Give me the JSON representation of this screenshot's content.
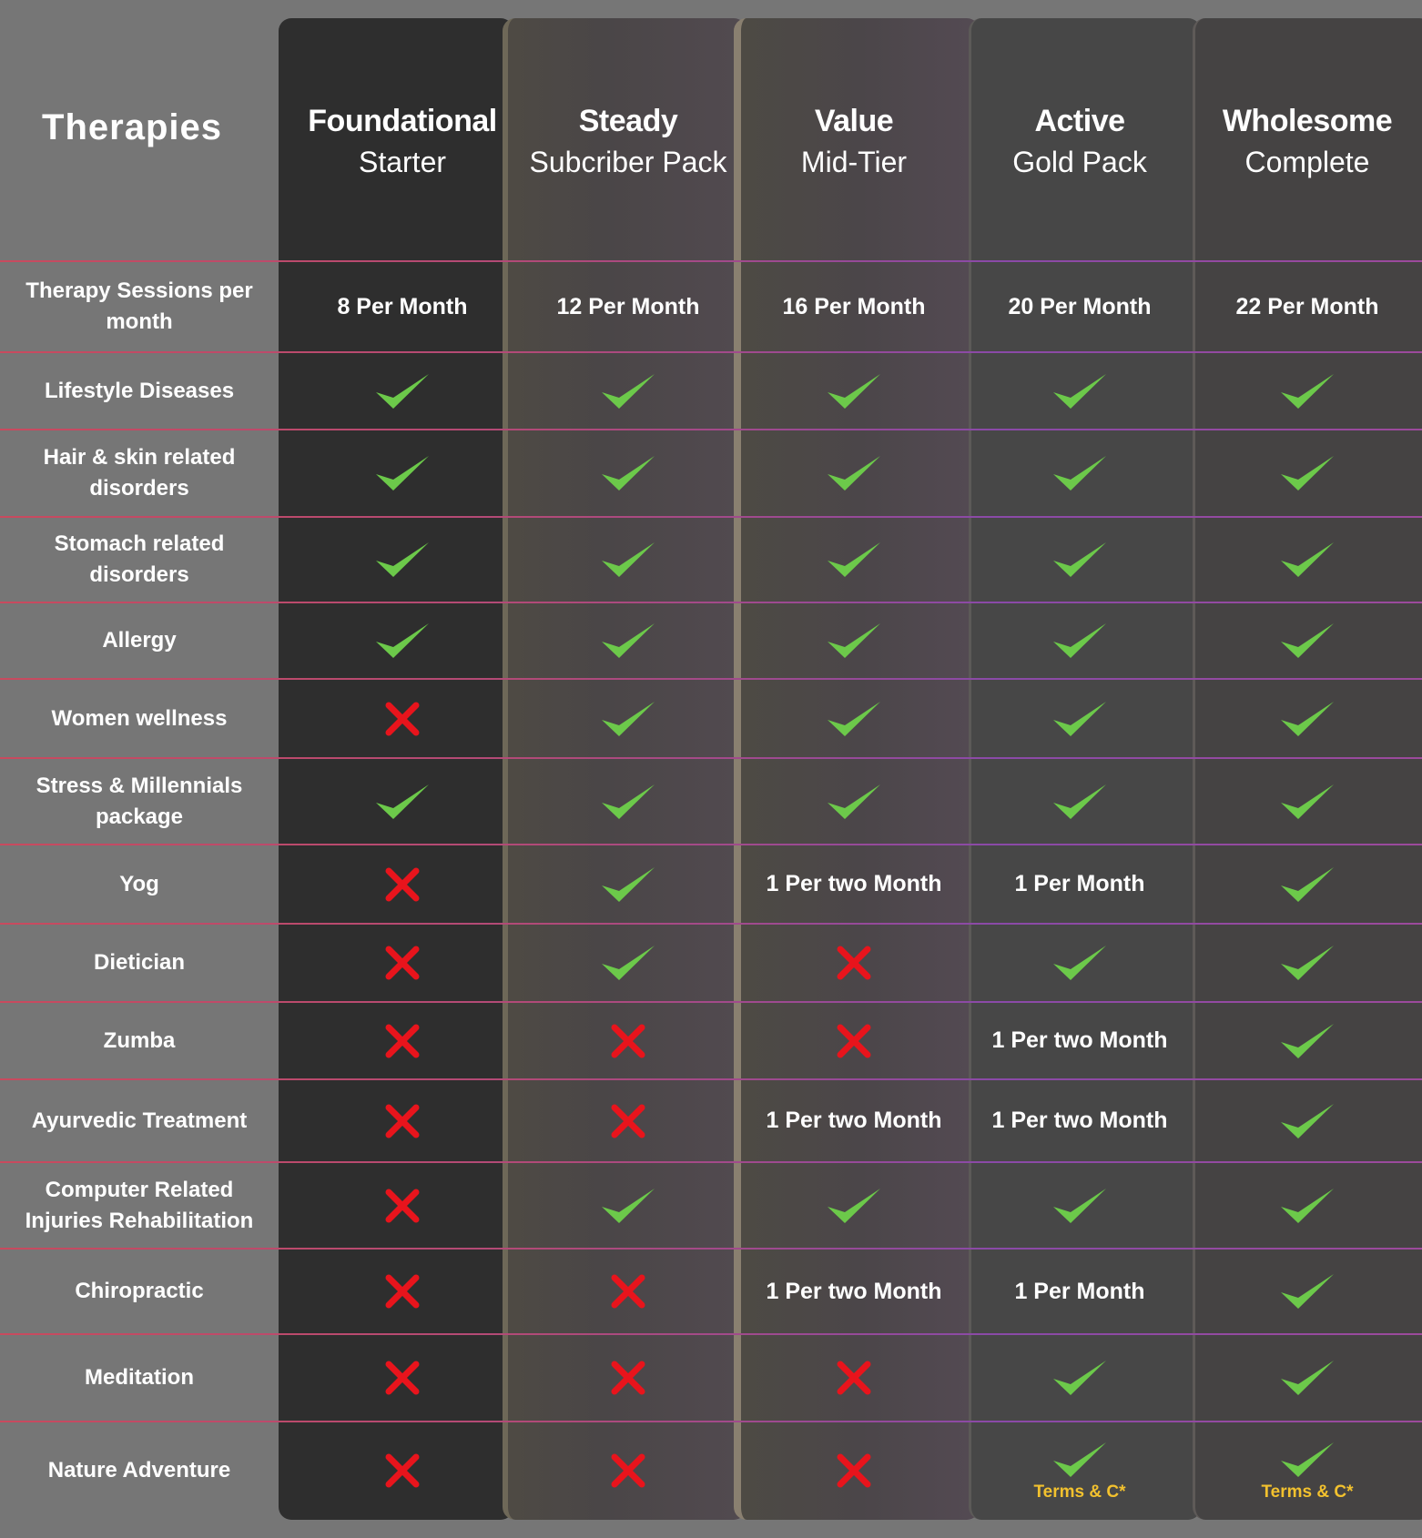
{
  "header": {
    "title": "Therapies",
    "plans": [
      {
        "line1": "Foundational",
        "line2": "Starter"
      },
      {
        "line1": "Steady",
        "line2": "Subcriber Pack"
      },
      {
        "line1": "Value",
        "line2": "Mid-Tier"
      },
      {
        "line1": "Active",
        "line2": "Gold Pack"
      },
      {
        "line1": "Wholesome",
        "line2": "Complete"
      }
    ]
  },
  "colors": {
    "check": "#6cc94a",
    "cross": "#e8141c",
    "note": "#f2c12e"
  },
  "rows": [
    {
      "label": "Therapy Sessions per month",
      "cells": [
        {
          "type": "text",
          "text": "8 Per Month"
        },
        {
          "type": "text",
          "text": "12 Per Month"
        },
        {
          "type": "text",
          "text": "16 Per Month"
        },
        {
          "type": "text",
          "text": "20 Per Month"
        },
        {
          "type": "text",
          "text": "22 Per Month"
        }
      ]
    },
    {
      "label": "Lifestyle Diseases",
      "cells": [
        {
          "type": "check"
        },
        {
          "type": "check"
        },
        {
          "type": "check"
        },
        {
          "type": "check"
        },
        {
          "type": "check"
        }
      ]
    },
    {
      "label": "Hair & skin related disorders",
      "cells": [
        {
          "type": "check"
        },
        {
          "type": "check"
        },
        {
          "type": "check"
        },
        {
          "type": "check"
        },
        {
          "type": "check"
        }
      ]
    },
    {
      "label": "Stomach related disorders",
      "cells": [
        {
          "type": "check"
        },
        {
          "type": "check"
        },
        {
          "type": "check"
        },
        {
          "type": "check"
        },
        {
          "type": "check"
        }
      ]
    },
    {
      "label": "Allergy",
      "cells": [
        {
          "type": "check"
        },
        {
          "type": "check"
        },
        {
          "type": "check"
        },
        {
          "type": "check"
        },
        {
          "type": "check"
        }
      ]
    },
    {
      "label": "Women wellness",
      "cells": [
        {
          "type": "cross"
        },
        {
          "type": "check"
        },
        {
          "type": "check"
        },
        {
          "type": "check"
        },
        {
          "type": "check"
        }
      ]
    },
    {
      "label": "Stress & Millennials package",
      "cells": [
        {
          "type": "check"
        },
        {
          "type": "check"
        },
        {
          "type": "check"
        },
        {
          "type": "check"
        },
        {
          "type": "check"
        }
      ]
    },
    {
      "label": "Yog",
      "cells": [
        {
          "type": "cross"
        },
        {
          "type": "check"
        },
        {
          "type": "text",
          "text": "1 Per two Month"
        },
        {
          "type": "text",
          "text": "1 Per Month"
        },
        {
          "type": "check"
        }
      ]
    },
    {
      "label": "Dietician",
      "cells": [
        {
          "type": "cross"
        },
        {
          "type": "check"
        },
        {
          "type": "cross"
        },
        {
          "type": "check"
        },
        {
          "type": "check"
        }
      ]
    },
    {
      "label": "Zumba",
      "cells": [
        {
          "type": "cross"
        },
        {
          "type": "cross"
        },
        {
          "type": "cross"
        },
        {
          "type": "text",
          "text": "1 Per two Month"
        },
        {
          "type": "check"
        }
      ]
    },
    {
      "label": "Ayurvedic Treatment",
      "cells": [
        {
          "type": "cross"
        },
        {
          "type": "cross"
        },
        {
          "type": "text",
          "text": "1 Per two Month"
        },
        {
          "type": "text",
          "text": "1 Per two Month"
        },
        {
          "type": "check"
        }
      ]
    },
    {
      "label": "Computer Related Injuries Rehabilitation",
      "cells": [
        {
          "type": "cross"
        },
        {
          "type": "check"
        },
        {
          "type": "check"
        },
        {
          "type": "check"
        },
        {
          "type": "check"
        }
      ]
    },
    {
      "label": "Chiropractic",
      "cells": [
        {
          "type": "cross"
        },
        {
          "type": "cross"
        },
        {
          "type": "text",
          "text": "1 Per two Month"
        },
        {
          "type": "text",
          "text": "1 Per Month"
        },
        {
          "type": "check"
        }
      ]
    },
    {
      "label": "Meditation",
      "cells": [
        {
          "type": "cross"
        },
        {
          "type": "cross"
        },
        {
          "type": "cross"
        },
        {
          "type": "check"
        },
        {
          "type": "check"
        }
      ]
    },
    {
      "label": "Nature Adventure",
      "cells": [
        {
          "type": "cross"
        },
        {
          "type": "cross"
        },
        {
          "type": "cross"
        },
        {
          "type": "check",
          "note": "Terms & C*"
        },
        {
          "type": "check",
          "note": "Terms & C*"
        }
      ]
    }
  ]
}
